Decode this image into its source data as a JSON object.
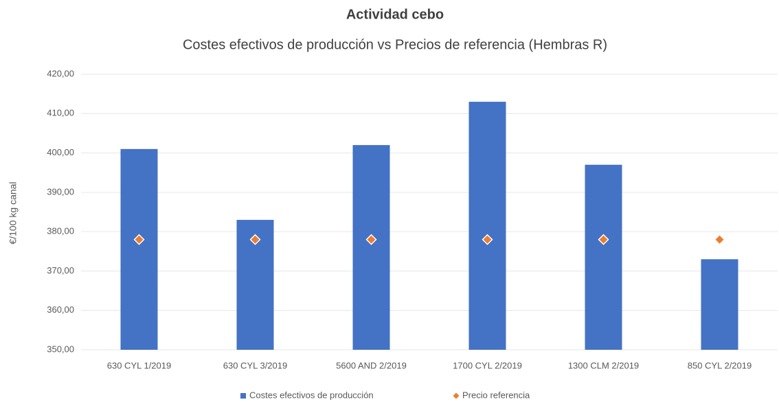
{
  "chart_data": {
    "type": "bar",
    "title": "Actividad cebo",
    "subtitle": "Costes efectivos de producción vs Precios de referencia (Hembras R)",
    "y_label": "€/100 kg canal",
    "categories": [
      "630 CYL 1/2019",
      "630 CYL 3/2019",
      "5600 AND 2/2019",
      "1700 CYL 2/2019",
      "1300 CLM 2/2019",
      "850 CYL 2/2019"
    ],
    "series": [
      {
        "name": "Costes efectivos de producción",
        "type": "bar",
        "color": "#4472c4",
        "values": [
          401,
          383,
          402,
          413,
          397,
          373
        ]
      },
      {
        "name": "Precio referencia",
        "type": "scatter",
        "color": "#ed7d31",
        "values": [
          378,
          378,
          378,
          378,
          378,
          378
        ]
      }
    ],
    "ylim": [
      350,
      420
    ],
    "yticks": [
      {
        "value": 350,
        "label": "350,00"
      },
      {
        "value": 360,
        "label": "360,00"
      },
      {
        "value": 370,
        "label": "370,00"
      },
      {
        "value": 380,
        "label": "380,00"
      },
      {
        "value": 390,
        "label": "390,00"
      },
      {
        "value": 400,
        "label": "400,00"
      },
      {
        "value": 410,
        "label": "410,00"
      },
      {
        "value": 420,
        "label": "420,00"
      }
    ],
    "grid": true,
    "legend": "bottom"
  }
}
